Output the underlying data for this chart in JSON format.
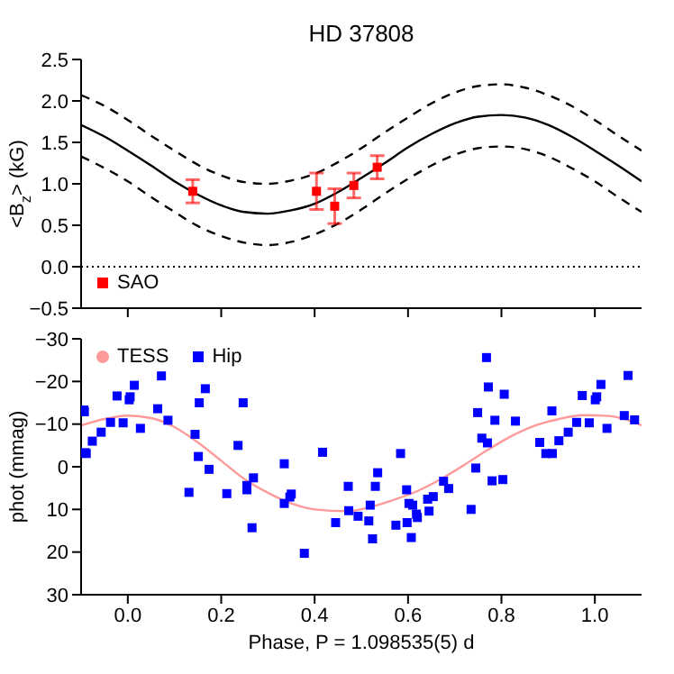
{
  "chart_data": [
    {
      "type": "line",
      "title": "HD 37808",
      "ylabel": "<B$_{z}$> (kG)",
      "xlim": [
        -0.1,
        1.1
      ],
      "xticks": [
        0,
        0.2,
        0.4,
        0.6,
        0.8,
        1
      ],
      "ylim": [
        -0.5,
        2.5
      ],
      "yticks": [
        -0.5,
        {
          "value": 0,
          "label": "0.0"
        },
        0.5,
        {
          "value": 1,
          "label": "1.0"
        },
        1.5,
        {
          "value": 2,
          "label": "2.0"
        },
        2.5
      ],
      "tick_labels": "y",
      "legend": "bottom left",
      "ref_lines": [
        {
          "axis": "y",
          "value": 0,
          "color": "#000000",
          "line_style": "dotted"
        }
      ],
      "series": [
        {
          "color": "#000000",
          "line_style": "solid",
          "x": [
            -0.1,
            -0.05,
            0,
            0.05,
            0.1,
            0.15,
            0.2,
            0.25,
            0.3,
            0.35,
            0.4,
            0.45,
            0.5,
            0.55,
            0.6,
            0.65,
            0.7,
            0.75,
            0.8,
            0.85,
            0.9,
            0.95,
            1,
            1.05,
            1.1
          ],
          "values": [
            1.71,
            1.57,
            1.4,
            1.22,
            1.03,
            0.87,
            0.74,
            0.66,
            0.64,
            0.68,
            0.76,
            0.9,
            1.07,
            1.25,
            1.44,
            1.6,
            1.73,
            1.81,
            1.83,
            1.8,
            1.71,
            1.57,
            1.4,
            1.22,
            1.03
          ]
        },
        {
          "color": "#000000",
          "line_style": "dashed",
          "x": [
            -0.1,
            -0.05,
            0,
            0.05,
            0.1,
            0.15,
            0.2,
            0.25,
            0.3,
            0.35,
            0.4,
            0.45,
            0.5,
            0.55,
            0.6,
            0.65,
            0.7,
            0.75,
            0.8,
            0.85,
            0.9,
            0.95,
            1,
            1.05,
            1.1
          ],
          "values": [
            2.07,
            1.94,
            1.77,
            1.58,
            1.4,
            1.23,
            1.1,
            1.02,
            1,
            1.04,
            1.12,
            1.26,
            1.43,
            1.62,
            1.8,
            1.97,
            2.1,
            2.18,
            2.2,
            2.16,
            2.07,
            1.94,
            1.77,
            1.58,
            1.4
          ]
        },
        {
          "color": "#000000",
          "line_style": "dashed",
          "x": [
            -0.1,
            -0.05,
            0,
            0.05,
            0.1,
            0.15,
            0.2,
            0.25,
            0.3,
            0.35,
            0.4,
            0.45,
            0.5,
            0.55,
            0.6,
            0.65,
            0.7,
            0.75,
            0.8,
            0.85,
            0.9,
            0.95,
            1,
            1.05,
            1.1
          ],
          "values": [
            1.33,
            1.19,
            1.03,
            0.84,
            0.66,
            0.49,
            0.37,
            0.29,
            0.26,
            0.3,
            0.39,
            0.52,
            0.69,
            0.88,
            1.06,
            1.22,
            1.35,
            1.43,
            1.45,
            1.42,
            1.33,
            1.19,
            1.03,
            0.84,
            0.66
          ]
        },
        {
          "type": "scatter",
          "name": "SAO",
          "color": "#ff0000",
          "marker": "square",
          "x": [
            0.139,
            0.404,
            0.443,
            0.484,
            0.534
          ],
          "values": [
            0.91,
            0.91,
            0.73,
            0.98,
            1.2
          ],
          "errors": [
            0.14,
            0.22,
            0.21,
            0.15,
            0.14
          ]
        }
      ]
    },
    {
      "type": "scatter",
      "xlabel": "Phase, P = 1.098535(5) d",
      "ylabel": "phot (mmag)",
      "xlim": [
        -0.1,
        1.1
      ],
      "xticks": [
        {
          "value": 0,
          "label": "0.0"
        },
        {
          "value": 0.2,
          "label": "0.2"
        },
        {
          "value": 0.4,
          "label": "0.4"
        },
        {
          "value": 0.6,
          "label": "0.6"
        },
        {
          "value": 0.8,
          "label": "0.8"
        },
        {
          "value": 1,
          "label": "1.0"
        }
      ],
      "ylim": [
        30,
        -30
      ],
      "yticks": [
        -30,
        -20,
        -10,
        0,
        10,
        20,
        30
      ],
      "legend": "top left",
      "series": [
        {
          "type": "line",
          "name": "TESS",
          "color": "#ff9a9a",
          "line_style": "solid",
          "x": [
            -0.1,
            -0.05,
            0,
            0.05,
            0.1,
            0.15,
            0.2,
            0.25,
            0.3,
            0.35,
            0.4,
            0.47,
            0.51,
            0.56,
            0.62,
            0.67,
            0.72,
            0.77,
            0.82,
            0.87,
            0.92,
            0.975,
            1.03,
            1.08,
            1.1
          ],
          "values": [
            -9.7,
            -11.2,
            -12,
            -11.4,
            -9.3,
            -5.7,
            -1.4,
            2.9,
            6.1,
            8.6,
            10,
            10.4,
            9.7,
            8.1,
            5.7,
            2.9,
            -0.4,
            -3.9,
            -7.1,
            -9.6,
            -11.1,
            -12.1,
            -11.9,
            -10.6,
            -9.7
          ]
        },
        {
          "name": "Hip",
          "color": "#0000ff",
          "marker": "square",
          "x": [
            -0.094,
            -0.093,
            -0.091,
            -0.089,
            -0.076,
            -0.057,
            -0.037,
            -0.023,
            -0.01,
            0.003,
            0.005,
            0.014,
            0.027,
            0.064,
            0.072,
            0.086,
            0.131,
            0.144,
            0.151,
            0.153,
            0.166,
            0.174,
            0.212,
            0.236,
            0.247,
            0.255,
            0.255,
            0.269,
            0.266,
            0.335,
            0.335,
            0.347,
            0.35,
            0.378,
            0.417,
            0.445,
            0.472,
            0.473,
            0.493,
            0.516,
            0.519,
            0.524,
            0.53,
            0.535,
            0.574,
            0.584,
            0.597,
            0.598,
            0.602,
            0.607,
            0.61,
            0.618,
            0.62,
            0.642,
            0.645,
            0.654,
            0.676,
            0.687,
            0.735,
            0.745,
            0.749,
            0.758,
            0.77,
            0.772,
            0.786,
            0.768,
            0.78,
            0.803,
            0.806,
            0.83,
            0.882,
            0.895,
            0.909,
            0.908,
            0.923,
            0.943,
            0.961,
            0.973,
            0.988,
            1.001,
            1.004,
            1.013,
            1.026,
            1.063,
            1.071,
            1.085
          ],
          "values": [
            -13.3,
            -12.9,
            -3.3,
            -3.1,
            -6,
            -8.1,
            -10.4,
            -16.6,
            -10.3,
            -15.7,
            -16.4,
            -19.1,
            -9,
            -13.6,
            -21.3,
            -10.9,
            6,
            -7.6,
            -2.4,
            -15,
            -18.3,
            0.6,
            6.3,
            -5,
            -15,
            5.4,
            4.4,
            2.6,
            14.3,
            -0.7,
            8.6,
            7.1,
            6.4,
            20.3,
            -3.4,
            13.1,
            4.6,
            10.3,
            11.6,
            12.7,
            9,
            16.9,
            4.6,
            1.4,
            13.7,
            -3.1,
            5.4,
            13.1,
            8.6,
            16.6,
            9,
            11.1,
            11.9,
            7.6,
            10.4,
            7,
            3.4,
            5.1,
            10,
            0.3,
            -12.7,
            -6.7,
            -5.6,
            -18.7,
            -10.9,
            -25.6,
            3.3,
            3,
            -17,
            -10.7,
            -5.7,
            -3.1,
            -3.1,
            -13.1,
            -6.1,
            -8.1,
            -10.4,
            -16.7,
            -10.3,
            -15.7,
            -16.4,
            -19.3,
            -9,
            -12,
            -21.4,
            -11
          ]
        }
      ]
    }
  ]
}
